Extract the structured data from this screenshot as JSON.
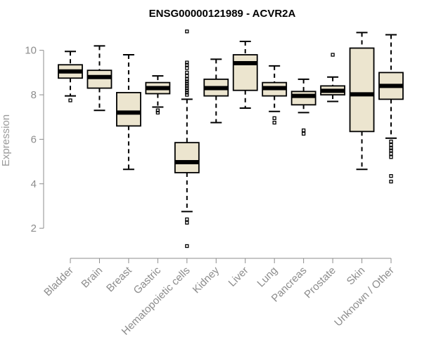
{
  "chart_data": {
    "type": "box",
    "title": "ENSG00000121989 - ACVR2A",
    "xlabel": "",
    "ylabel": "Expression",
    "ylim": [
      0.9,
      11.0
    ],
    "yticks": [
      2,
      4,
      6,
      8,
      10
    ],
    "colors": {
      "box_fill": "#ece5cf",
      "stroke": "#000000",
      "axis": "#8c8c8c"
    },
    "categories": [
      "Bladder",
      "Brain",
      "Breast",
      "Gastric",
      "Hematopoietic cells",
      "Kidney",
      "Liver",
      "Lung",
      "Pancreas",
      "Prostate",
      "Skin",
      "Unknown / Other"
    ],
    "boxes": [
      {
        "name": "Bladder",
        "whislo": 7.95,
        "q1": 8.75,
        "med": 9.05,
        "q3": 9.35,
        "whishi": 9.95,
        "fliers": [
          7.75
        ]
      },
      {
        "name": "Brain",
        "whislo": 7.3,
        "q1": 8.3,
        "med": 8.8,
        "q3": 9.1,
        "whishi": 10.2,
        "fliers": []
      },
      {
        "name": "Breast",
        "whislo": 4.65,
        "q1": 6.6,
        "med": 7.2,
        "q3": 8.1,
        "whishi": 9.8,
        "fliers": []
      },
      {
        "name": "Gastric",
        "whislo": 7.45,
        "q1": 8.05,
        "med": 8.3,
        "q3": 8.55,
        "whishi": 8.85,
        "fliers": [
          7.3,
          7.2
        ]
      },
      {
        "name": "Hematopoietic cells",
        "whislo": 2.75,
        "q1": 4.5,
        "med": 4.97,
        "q3": 5.85,
        "whishi": 7.8,
        "fliers": [
          8.0,
          8.1,
          8.2,
          8.3,
          8.4,
          8.5,
          8.6,
          8.7,
          8.85,
          9.0,
          9.2,
          9.35,
          9.45,
          10.85,
          2.4,
          2.25,
          1.2
        ]
      },
      {
        "name": "Kidney",
        "whislo": 6.75,
        "q1": 7.95,
        "med": 8.3,
        "q3": 8.7,
        "whishi": 9.6,
        "fliers": []
      },
      {
        "name": "Liver",
        "whislo": 7.4,
        "q1": 8.2,
        "med": 9.42,
        "q3": 9.8,
        "whishi": 10.4,
        "fliers": []
      },
      {
        "name": "Lung",
        "whislo": 7.25,
        "q1": 7.95,
        "med": 8.3,
        "q3": 8.55,
        "whishi": 9.3,
        "fliers": [
          6.95,
          6.75
        ]
      },
      {
        "name": "Pancreas",
        "whislo": 7.2,
        "q1": 7.55,
        "med": 7.95,
        "q3": 8.15,
        "whishi": 8.7,
        "fliers": [
          6.4,
          6.25
        ]
      },
      {
        "name": "Prostate",
        "whislo": 7.7,
        "q1": 8.0,
        "med": 8.18,
        "q3": 8.4,
        "whishi": 8.8,
        "fliers": [
          9.8
        ]
      },
      {
        "name": "Skin",
        "whislo": 4.65,
        "q1": 6.35,
        "med": 8.02,
        "q3": 10.1,
        "whishi": 10.8,
        "fliers": []
      },
      {
        "name": "Unknown / Other",
        "whislo": 6.05,
        "q1": 7.8,
        "med": 8.4,
        "q3": 9.0,
        "whishi": 10.7,
        "fliers": [
          5.9,
          5.75,
          5.6,
          5.5,
          5.35,
          5.2,
          4.35,
          4.1
        ]
      }
    ]
  }
}
